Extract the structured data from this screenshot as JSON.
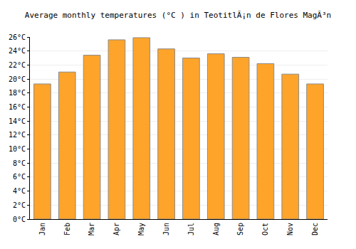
{
  "chart_data": {
    "type": "bar",
    "title": "Average monthly temperatures (°C ) in TeotitlÃ¡n de Flores MagÃ³n",
    "categories": [
      "Jan",
      "Feb",
      "Mar",
      "Apr",
      "May",
      "Jun",
      "Jul",
      "Aug",
      "Sep",
      "Oct",
      "Nov",
      "Dec"
    ],
    "values": [
      19.3,
      21.0,
      23.4,
      25.6,
      25.9,
      24.3,
      23.0,
      23.6,
      23.1,
      22.2,
      20.7,
      19.3
    ],
    "color": "#ffa42a",
    "ylim": [
      0,
      26
    ],
    "yticks": [
      {
        "value": 0,
        "label": "0°C"
      },
      {
        "value": 2,
        "label": "2°C"
      },
      {
        "value": 4,
        "label": "4°C"
      },
      {
        "value": 6,
        "label": "6°C"
      },
      {
        "value": 8,
        "label": "8°C"
      },
      {
        "value": 10,
        "label": "10°C"
      },
      {
        "value": 12,
        "label": "12°C"
      },
      {
        "value": 14,
        "label": "14°C"
      },
      {
        "value": 16,
        "label": "16°C"
      },
      {
        "value": 18,
        "label": "18°C"
      },
      {
        "value": 20,
        "label": "20°C"
      },
      {
        "value": 22,
        "label": "22°C"
      },
      {
        "value": 24,
        "label": "24°C"
      },
      {
        "value": 26,
        "label": "26°C"
      }
    ],
    "grid": true
  }
}
